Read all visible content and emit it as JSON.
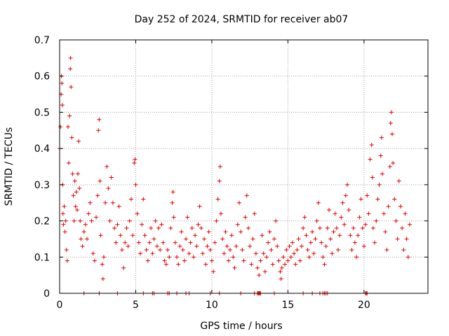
{
  "chart_data": {
    "type": "scatter",
    "title": "Day 252 of 2024, SRMTID for receiver ab07",
    "xlabel": "GPS time / hours",
    "ylabel": "SRMTID / TECUs",
    "xlim": [
      0,
      24.2
    ],
    "ylim": [
      0,
      0.7
    ],
    "xticks": [
      0,
      5,
      10,
      15,
      20
    ],
    "xtick_labels": [
      "0",
      "5",
      "10",
      "15",
      "20"
    ],
    "yticks": [
      0,
      0.1,
      0.2,
      0.3,
      0.4,
      0.5,
      0.6,
      0.7
    ],
    "ytick_labels": [
      "0",
      "0.1",
      "0.2",
      "0.3",
      "0.4",
      "0.5",
      "0.6",
      "0.7"
    ],
    "grid": true,
    "marker": "plus",
    "color": "#e00000",
    "series": [
      {
        "name": "SRMTID",
        "points": [
          [
            0.0,
            0.4
          ],
          [
            0.05,
            0.46
          ],
          [
            0.1,
            0.55
          ],
          [
            0.12,
            0.6
          ],
          [
            0.15,
            0.58
          ],
          [
            0.18,
            0.52
          ],
          [
            0.2,
            0.3
          ],
          [
            0.22,
            0.22
          ],
          [
            0.25,
            0.19
          ],
          [
            0.3,
            0.24
          ],
          [
            0.35,
            0.17
          ],
          [
            0.4,
            0.2
          ],
          [
            0.45,
            0.12
          ],
          [
            0.5,
            0.09
          ],
          [
            0.55,
            0.46
          ],
          [
            0.6,
            0.36
          ],
          [
            0.65,
            0.49
          ],
          [
            0.7,
            0.62
          ],
          [
            0.72,
            0.65
          ],
          [
            0.75,
            0.57
          ],
          [
            0.8,
            0.43
          ],
          [
            0.85,
            0.33
          ],
          [
            0.9,
            0.27
          ],
          [
            0.95,
            0.2
          ],
          [
            1.0,
            0.31
          ],
          [
            1.05,
            0.24
          ],
          [
            1.1,
            0.28
          ],
          [
            1.15,
            0.23
          ],
          [
            1.2,
            0.33
          ],
          [
            1.25,
            0.42
          ],
          [
            1.3,
            0.29
          ],
          [
            1.35,
            0.2
          ],
          [
            1.4,
            0.15
          ],
          [
            1.5,
            0.13
          ],
          [
            1.6,
            0.17
          ],
          [
            1.7,
            0.19
          ],
          [
            1.8,
            0.15
          ],
          [
            1.9,
            0.22
          ],
          [
            2.0,
            0.25
          ],
          [
            2.1,
            0.2
          ],
          [
            2.2,
            0.11
          ],
          [
            2.3,
            0.09
          ],
          [
            2.4,
            0.21
          ],
          [
            2.5,
            0.27
          ],
          [
            2.55,
            0.45
          ],
          [
            2.6,
            0.48
          ],
          [
            2.65,
            0.31
          ],
          [
            2.7,
            0.16
          ],
          [
            2.8,
            0.08
          ],
          [
            2.85,
            0.04
          ],
          [
            2.9,
            0.1
          ],
          [
            3.0,
            0.25
          ],
          [
            3.1,
            0.35
          ],
          [
            3.2,
            0.29
          ],
          [
            3.3,
            0.2
          ],
          [
            3.4,
            0.32
          ],
          [
            3.5,
            0.25
          ],
          [
            3.6,
            0.18
          ],
          [
            3.7,
            0.14
          ],
          [
            3.8,
            0.19
          ],
          [
            3.9,
            0.24
          ],
          [
            4.0,
            0.16
          ],
          [
            4.1,
            0.12
          ],
          [
            4.2,
            0.07
          ],
          [
            4.3,
            0.14
          ],
          [
            4.4,
            0.18
          ],
          [
            4.5,
            0.13
          ],
          [
            4.6,
            0.2
          ],
          [
            4.7,
            0.26
          ],
          [
            4.8,
            0.16
          ],
          [
            4.9,
            0.36
          ],
          [
            4.95,
            0.37
          ],
          [
            5.0,
            0.3
          ],
          [
            5.1,
            0.22
          ],
          [
            5.2,
            0.14
          ],
          [
            5.3,
            0.11
          ],
          [
            5.4,
            0.19
          ],
          [
            5.5,
            0.26
          ],
          [
            5.6,
            0.16
          ],
          [
            5.7,
            0.12
          ],
          [
            5.8,
            0.09
          ],
          [
            5.9,
            0.14
          ],
          [
            6.0,
            0.18
          ],
          [
            6.1,
            0.11
          ],
          [
            6.2,
            0.15
          ],
          [
            6.3,
            0.2
          ],
          [
            6.4,
            0.13
          ],
          [
            6.5,
            0.18
          ],
          [
            6.6,
            0.12
          ],
          [
            6.7,
            0.19
          ],
          [
            6.8,
            0.14
          ],
          [
            6.9,
            0.09
          ],
          [
            7.0,
            0.08
          ],
          [
            7.1,
            0.12
          ],
          [
            7.2,
            0.1
          ],
          [
            7.3,
            0.18
          ],
          [
            7.4,
            0.25
          ],
          [
            7.45,
            0.28
          ],
          [
            7.5,
            0.21
          ],
          [
            7.6,
            0.14
          ],
          [
            7.7,
            0.1
          ],
          [
            7.8,
            0.08
          ],
          [
            7.9,
            0.13
          ],
          [
            8.0,
            0.17
          ],
          [
            8.1,
            0.12
          ],
          [
            8.2,
            0.09
          ],
          [
            8.3,
            0.15
          ],
          [
            8.4,
            0.21
          ],
          [
            8.5,
            0.11
          ],
          [
            8.6,
            0.14
          ],
          [
            8.7,
            0.18
          ],
          [
            8.8,
            0.1
          ],
          [
            8.9,
            0.16
          ],
          [
            9.0,
            0.13
          ],
          [
            9.1,
            0.19
          ],
          [
            9.2,
            0.24
          ],
          [
            9.3,
            0.18
          ],
          [
            9.4,
            0.11
          ],
          [
            9.5,
            0.15
          ],
          [
            9.6,
            0.08
          ],
          [
            9.7,
            0.13
          ],
          [
            9.8,
            0.17
          ],
          [
            9.9,
            0.12
          ],
          [
            10.0,
            0.09
          ],
          [
            10.1,
            0.06
          ],
          [
            10.2,
            0.14
          ],
          [
            10.3,
            0.2
          ],
          [
            10.4,
            0.26
          ],
          [
            10.5,
            0.31
          ],
          [
            10.55,
            0.35
          ],
          [
            10.6,
            0.22
          ],
          [
            10.7,
            0.15
          ],
          [
            10.8,
            0.11
          ],
          [
            10.9,
            0.17
          ],
          [
            11.0,
            0.13
          ],
          [
            11.1,
            0.09
          ],
          [
            11.2,
            0.12
          ],
          [
            11.3,
            0.16
          ],
          [
            11.4,
            0.1
          ],
          [
            11.5,
            0.07
          ],
          [
            11.6,
            0.13
          ],
          [
            11.7,
            0.19
          ],
          [
            11.8,
            0.25
          ],
          [
            11.9,
            0.17
          ],
          [
            12.0,
            0.12
          ],
          [
            12.1,
            0.09
          ],
          [
            12.2,
            0.21
          ],
          [
            12.3,
            0.27
          ],
          [
            12.4,
            0.18
          ],
          [
            12.5,
            0.13
          ],
          [
            12.6,
            0.08
          ],
          [
            12.7,
            0.15
          ],
          [
            12.8,
            0.22
          ],
          [
            12.9,
            0.11
          ],
          [
            13.0,
            0.07
          ],
          [
            13.1,
            0.05
          ],
          [
            13.2,
            0.09
          ],
          [
            13.3,
            0.16
          ],
          [
            13.4,
            0.11
          ],
          [
            13.5,
            0.06
          ],
          [
            13.6,
            0.1
          ],
          [
            13.7,
            0.14
          ],
          [
            13.8,
            0.17
          ],
          [
            13.9,
            0.12
          ],
          [
            14.0,
            0.08
          ],
          [
            14.1,
            0.15
          ],
          [
            14.2,
            0.2
          ],
          [
            14.3,
            0.13
          ],
          [
            14.4,
            0.09
          ],
          [
            14.5,
            0.06
          ],
          [
            14.55,
            0.04
          ],
          [
            14.6,
            0.07
          ],
          [
            14.7,
            0.1
          ],
          [
            14.8,
            0.08
          ],
          [
            14.9,
            0.12
          ],
          [
            15.0,
            0.09
          ],
          [
            15.1,
            0.13
          ],
          [
            15.2,
            0.1
          ],
          [
            15.3,
            0.14
          ],
          [
            15.4,
            0.11
          ],
          [
            15.5,
            0.08
          ],
          [
            15.6,
            0.12
          ],
          [
            15.7,
            0.15
          ],
          [
            15.8,
            0.09
          ],
          [
            15.9,
            0.13
          ],
          [
            16.0,
            0.18
          ],
          [
            16.1,
            0.21
          ],
          [
            16.2,
            0.16
          ],
          [
            16.3,
            0.12
          ],
          [
            16.4,
            0.1
          ],
          [
            16.5,
            0.14
          ],
          [
            16.6,
            0.17
          ],
          [
            16.7,
            0.11
          ],
          [
            16.8,
            0.15
          ],
          [
            16.9,
            0.2
          ],
          [
            17.0,
            0.25
          ],
          [
            17.1,
            0.18
          ],
          [
            17.2,
            0.14
          ],
          [
            17.3,
            0.1
          ],
          [
            17.4,
            0.08
          ],
          [
            17.5,
            0.13
          ],
          [
            17.6,
            0.18
          ],
          [
            17.7,
            0.23
          ],
          [
            17.8,
            0.15
          ],
          [
            17.9,
            0.11
          ],
          [
            18.0,
            0.17
          ],
          [
            18.1,
            0.22
          ],
          [
            18.2,
            0.18
          ],
          [
            18.3,
            0.12
          ],
          [
            18.4,
            0.16
          ],
          [
            18.5,
            0.21
          ],
          [
            18.6,
            0.25
          ],
          [
            18.7,
            0.19
          ],
          [
            18.8,
            0.27
          ],
          [
            18.9,
            0.3
          ],
          [
            19.0,
            0.23
          ],
          [
            19.1,
            0.16
          ],
          [
            19.2,
            0.12
          ],
          [
            19.3,
            0.18
          ],
          [
            19.4,
            0.14
          ],
          [
            19.5,
            0.1
          ],
          [
            19.6,
            0.16
          ],
          [
            19.7,
            0.21
          ],
          [
            19.8,
            0.26
          ],
          [
            19.9,
            0.18
          ],
          [
            20.0,
            0.13
          ],
          [
            20.1,
            0.19
          ],
          [
            20.2,
            0.27
          ],
          [
            20.3,
            0.22
          ],
          [
            20.4,
            0.37
          ],
          [
            20.5,
            0.41
          ],
          [
            20.55,
            0.32
          ],
          [
            20.6,
            0.18
          ],
          [
            20.7,
            0.14
          ],
          [
            20.8,
            0.2
          ],
          [
            20.9,
            0.26
          ],
          [
            21.0,
            0.3
          ],
          [
            21.1,
            0.38
          ],
          [
            21.15,
            0.43
          ],
          [
            21.2,
            0.33
          ],
          [
            21.3,
            0.22
          ],
          [
            21.4,
            0.17
          ],
          [
            21.5,
            0.12
          ],
          [
            21.6,
            0.24
          ],
          [
            21.7,
            0.35
          ],
          [
            21.75,
            0.47
          ],
          [
            21.8,
            0.5
          ],
          [
            21.85,
            0.44
          ],
          [
            21.9,
            0.36
          ],
          [
            22.0,
            0.26
          ],
          [
            22.1,
            0.2
          ],
          [
            22.2,
            0.15
          ],
          [
            22.3,
            0.31
          ],
          [
            22.4,
            0.24
          ],
          [
            22.5,
            0.18
          ],
          [
            22.6,
            0.12
          ],
          [
            22.7,
            0.22
          ],
          [
            22.8,
            0.15
          ],
          [
            22.9,
            0.1
          ],
          [
            23.0,
            0.19
          ],
          [
            1.6,
            0.0
          ],
          [
            2.6,
            0.0
          ],
          [
            3.8,
            0.0
          ],
          [
            5.5,
            0.0
          ],
          [
            6.1,
            0.0
          ],
          [
            6.2,
            0.0
          ],
          [
            7.1,
            0.0
          ],
          [
            7.2,
            0.0
          ],
          [
            7.7,
            0.0
          ],
          [
            8.3,
            0.0
          ],
          [
            8.5,
            0.0
          ],
          [
            9.9,
            0.0
          ],
          [
            10.5,
            0.0
          ],
          [
            11.9,
            0.0
          ],
          [
            12.8,
            0.0
          ],
          [
            13.0,
            0.0
          ],
          [
            13.05,
            0.0
          ],
          [
            13.1,
            0.0
          ],
          [
            13.15,
            0.0
          ],
          [
            13.2,
            0.0
          ],
          [
            14.1,
            0.0
          ],
          [
            16.0,
            0.0
          ],
          [
            16.6,
            0.0
          ],
          [
            17.1,
            0.0
          ],
          [
            17.3,
            0.0
          ],
          [
            17.4,
            0.0
          ],
          [
            17.5,
            0.0
          ],
          [
            17.6,
            0.0
          ],
          [
            20.1,
            0.0
          ],
          [
            20.15,
            0.0
          ],
          [
            20.2,
            0.0
          ]
        ]
      }
    ]
  }
}
